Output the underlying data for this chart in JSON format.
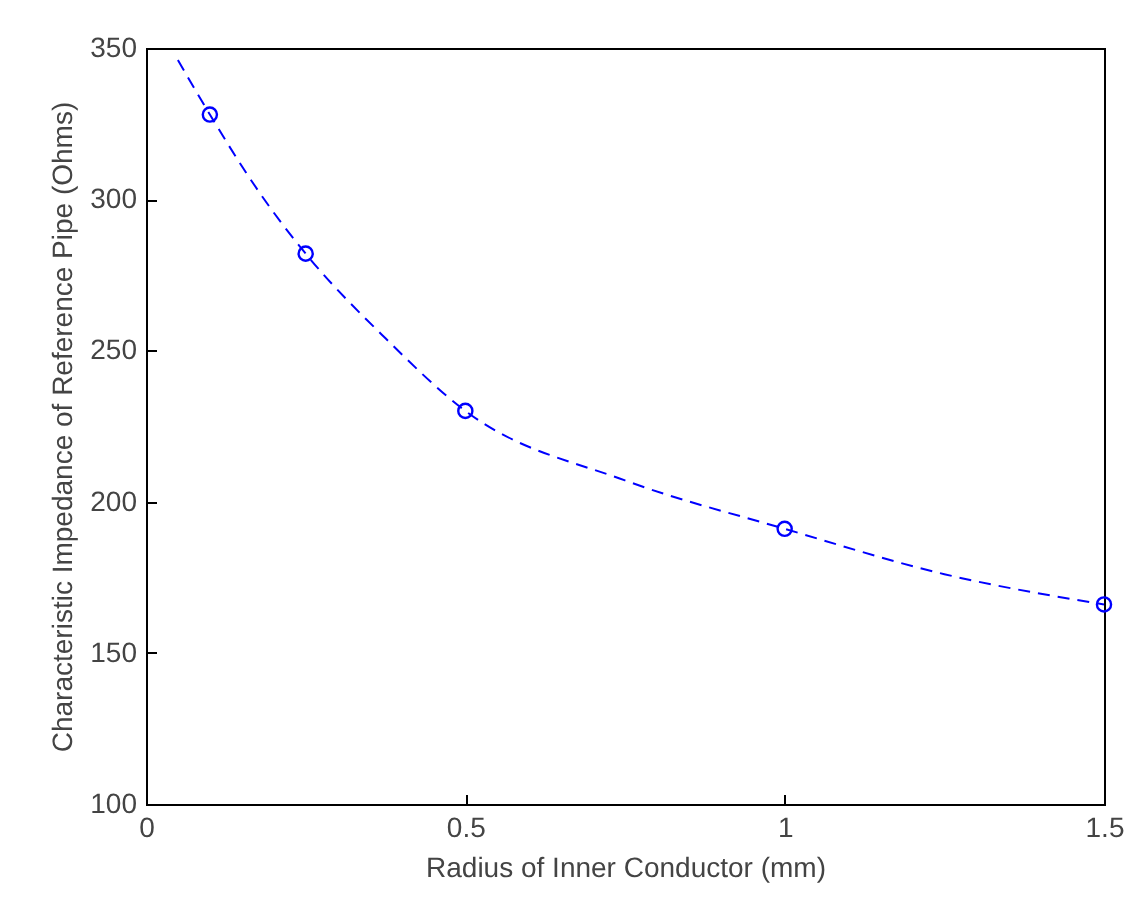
{
  "chart_data": {
    "type": "line",
    "xlabel": "Radius of Inner Conductor (mm)",
    "ylabel": "Characteristic Impedance of Reference Pipe (Ohms)",
    "xlim": [
      0,
      1.5
    ],
    "xticks": [
      0,
      0.5,
      1,
      1.5
    ],
    "ylim": [
      100,
      350
    ],
    "yticks": [
      100,
      150,
      200,
      250,
      300,
      350
    ],
    "grid": false,
    "series": [
      {
        "color": "#0000ff",
        "line_style": "dashed",
        "marker": "none",
        "x": [
          0.05,
          0.1,
          0.175,
          0.25,
          0.375,
          0.5,
          0.75,
          1,
          1.25,
          1.5
        ],
        "values": [
          346,
          328,
          303,
          282,
          254,
          230,
          207,
          191,
          176,
          166
        ]
      },
      {
        "type": "scatter",
        "color": "#0000ff",
        "marker": "circle",
        "x": [
          0.1,
          0.25,
          0.5,
          1,
          1.5
        ],
        "values": [
          328,
          282,
          230,
          191,
          166
        ]
      }
    ]
  }
}
